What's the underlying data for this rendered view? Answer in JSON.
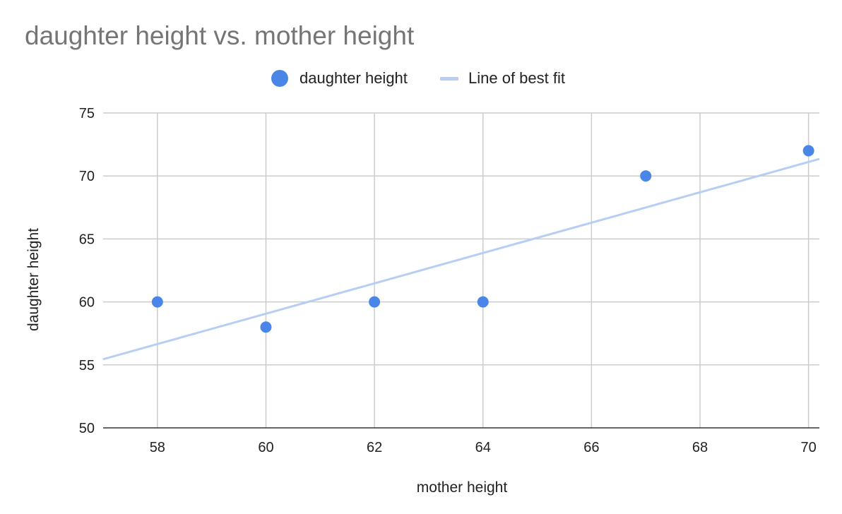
{
  "chart_data": {
    "type": "scatter",
    "title": "daughter height vs. mother height",
    "xlabel": "mother height",
    "ylabel": "daughter height",
    "xlim": [
      57,
      70.2
    ],
    "ylim": [
      50,
      75
    ],
    "x_ticks": [
      58,
      60,
      62,
      64,
      66,
      68,
      70
    ],
    "y_ticks": [
      50,
      55,
      60,
      65,
      70,
      75
    ],
    "grid": true,
    "legend_position": "top-center",
    "series": [
      {
        "name": "daughter height",
        "kind": "points",
        "color": "#4a86e8",
        "points": [
          {
            "x": 58,
            "y": 60
          },
          {
            "x": 60,
            "y": 58
          },
          {
            "x": 62,
            "y": 60
          },
          {
            "x": 64,
            "y": 60
          },
          {
            "x": 67,
            "y": 70
          },
          {
            "x": 70,
            "y": 72
          }
        ]
      },
      {
        "name": "Line of best fit",
        "kind": "trendline",
        "color": "#b7cdf3",
        "line": [
          {
            "x": 57,
            "y": 55.45
          },
          {
            "x": 70.2,
            "y": 71.35
          }
        ]
      }
    ]
  }
}
